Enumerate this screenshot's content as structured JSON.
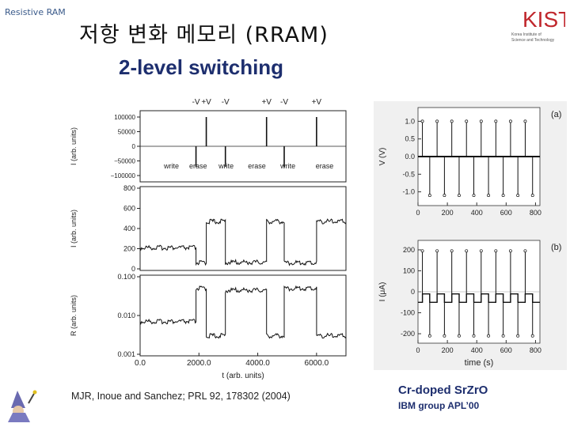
{
  "header": {
    "corner_label": "Resistive RAM",
    "title": "저항 변화 메모리 (RRAM)",
    "subtitle": "2-level switching",
    "logo_text": "KIST",
    "logo_sub": [
      "Korea Institute of",
      "Science and Technology"
    ]
  },
  "citation_left": "MJR, Inoue and Sanchez; PRL 92, 178302 (2004)",
  "caption_right": {
    "line1": "Cr-doped SrZrO",
    "line2": "IBM group APL’00"
  },
  "chart_data": [
    {
      "type": "line",
      "panel": "left-top",
      "ylabel": "I (arb. units)",
      "yticks": [
        "100000",
        "50000",
        "0",
        "−50000",
        "−100000"
      ],
      "ylim": [
        -100000,
        100000
      ],
      "xlim": [
        0,
        7000
      ],
      "pulses": [
        {
          "label": "-V",
          "x": 1900,
          "value": -70000
        },
        {
          "label": "+V",
          "x": 2250,
          "value": 100000
        },
        {
          "label": "-V",
          "x": 2900,
          "value": -70000
        },
        {
          "label": "+V",
          "x": 4300,
          "value": 100000
        },
        {
          "label": "-V",
          "x": 4900,
          "value": -70000
        },
        {
          "label": "+V",
          "x": 6000,
          "value": 100000
        }
      ],
      "annotations": [
        "write",
        "erase",
        "write",
        "erase",
        "write",
        "erase"
      ]
    },
    {
      "type": "line",
      "panel": "left-middle",
      "ylabel": "I (arb. units)",
      "yticks": [
        "800",
        "600",
        "400",
        "200",
        "0"
      ],
      "ylim": [
        0,
        800
      ],
      "xlim": [
        0,
        7000
      ],
      "x": [
        0,
        1900,
        1900,
        2250,
        2250,
        2900,
        2900,
        4300,
        4300,
        4900,
        4900,
        6000,
        6000,
        7000
      ],
      "y": [
        210,
        210,
        60,
        60,
        470,
        470,
        65,
        65,
        470,
        470,
        60,
        60,
        470,
        470
      ]
    },
    {
      "type": "line",
      "panel": "left-bottom",
      "ylabel": "R (arb. units)",
      "yticks": [
        "0.100",
        "0.010",
        "0.001"
      ],
      "y_scale": "log",
      "ylim": [
        0.001,
        0.1
      ],
      "xlabel": "t (arb. units)",
      "xticks": [
        "0.0",
        "2000.0",
        "4000.0",
        "6000.0"
      ],
      "xlim": [
        0,
        7000
      ],
      "x": [
        0,
        1900,
        1900,
        2250,
        2250,
        2900,
        2900,
        4300,
        4300,
        4900,
        4900,
        6000,
        6000,
        7000
      ],
      "y": [
        0.007,
        0.007,
        0.05,
        0.05,
        0.003,
        0.003,
        0.045,
        0.045,
        0.003,
        0.003,
        0.05,
        0.05,
        0.003,
        0.003
      ]
    },
    {
      "type": "line",
      "panel": "right-top",
      "label": "(a)",
      "ylabel": "V (V)",
      "yticks": [
        "1.0",
        "0.5",
        "0.0",
        "-0.5",
        "-1.0"
      ],
      "ylim": [
        -1.3,
        1.3
      ],
      "xticks": [
        "0",
        "200",
        "400",
        "600",
        "800"
      ],
      "xlim": [
        0,
        830
      ],
      "base_level": 0.0,
      "up_pulses": [
        30,
        130,
        230,
        330,
        430,
        530,
        630,
        730
      ],
      "down_pulses": [
        80,
        180,
        280,
        380,
        480,
        580,
        680,
        780
      ],
      "up_value": 1.0,
      "down_value": -1.1
    },
    {
      "type": "line",
      "panel": "right-bottom",
      "label": "(b)",
      "ylabel": "I (μA)",
      "yticks": [
        "200",
        "100",
        "0",
        "-100",
        "-200"
      ],
      "ylim": [
        -230,
        230
      ],
      "xlabel": "time (s)",
      "xticks": [
        "0",
        "200",
        "400",
        "600",
        "800"
      ],
      "xlim": [
        0,
        830
      ],
      "high_level": -10,
      "low_level": -50,
      "up_pulses": [
        30,
        130,
        230,
        330,
        430,
        530,
        630,
        730
      ],
      "down_pulses": [
        80,
        180,
        280,
        380,
        480,
        580,
        680,
        780
      ],
      "up_value": 195,
      "down_value": -210
    }
  ]
}
